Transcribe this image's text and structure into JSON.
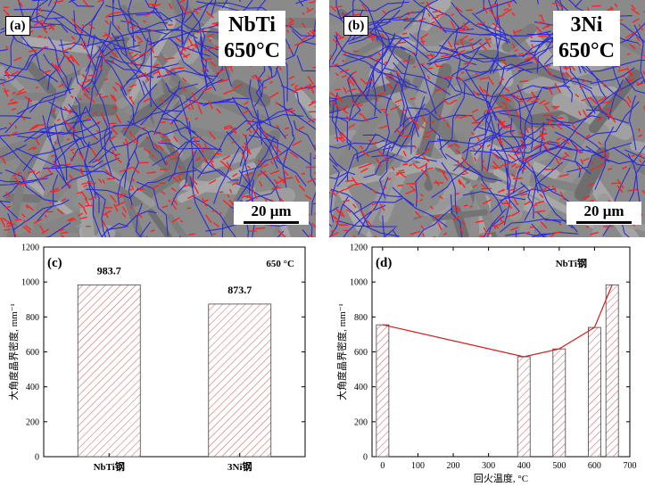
{
  "panels": {
    "a": {
      "label": "(a)",
      "material": "NbTi",
      "temperature": "650°C",
      "scalebar": "20 μm"
    },
    "b": {
      "label": "(b)",
      "material": "3Ni",
      "temperature": "650°C",
      "scalebar": "20 μm"
    }
  },
  "colors": {
    "hagb_boundary": "#2a2ad8",
    "lagb_boundary": "#ff2020",
    "background_grain": "#8a8a8a",
    "bar_hatch": "#c85a5a",
    "line": "#d21c1c"
  },
  "chart_data": [
    {
      "panel_label": "(c)",
      "type": "bar",
      "annotation": "650 °C",
      "categories": [
        "NbTi钢",
        "3Ni钢"
      ],
      "values": [
        983.7,
        873.7
      ],
      "data_labels": [
        "983.7",
        "873.7"
      ],
      "ylabel": "大角度晶界密度, mm⁻¹",
      "ylim": [
        0,
        1200
      ],
      "yticks": [
        0,
        200,
        400,
        600,
        800,
        1000,
        1200
      ],
      "bar_fill": "diagonal hatch",
      "grid": false
    },
    {
      "panel_label": "(d)",
      "type": "bar",
      "annotation": "NbTi钢",
      "x": [
        0,
        400,
        500,
        600,
        650
      ],
      "values": [
        755,
        572,
        617,
        740,
        984
      ],
      "overlay_line": true,
      "xlabel": "回火温度, °C",
      "ylabel": "大角度晶界密度, mm⁻¹",
      "xlim": [
        -30,
        700
      ],
      "ylim": [
        0,
        1200
      ],
      "xticks": [
        0,
        100,
        200,
        300,
        400,
        500,
        600,
        700
      ],
      "yticks": [
        0,
        200,
        400,
        600,
        800,
        1000,
        1200
      ],
      "bar_fill": "diagonal hatch",
      "grid": false
    }
  ]
}
